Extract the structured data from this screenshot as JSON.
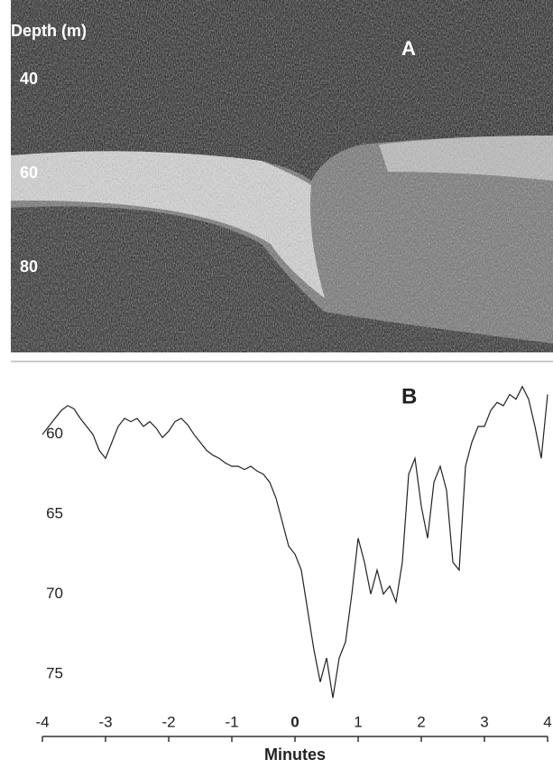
{
  "chart_data": [
    {
      "type": "echogram",
      "title": "A",
      "y_label": "Depth (m)",
      "ylim": [
        23,
        98
      ],
      "yticks": [
        40,
        60,
        80
      ]
    },
    {
      "type": "line",
      "title": "B",
      "x_label": "Minutes",
      "x": [
        -4,
        -3.9,
        -3.8,
        -3.7,
        -3.6,
        -3.5,
        -3.4,
        -3.3,
        -3.2,
        -3.1,
        -3,
        -2.9,
        -2.8,
        -2.7,
        -2.6,
        -2.5,
        -2.4,
        -2.3,
        -2.2,
        -2.1,
        -2,
        -1.9,
        -1.8,
        -1.7,
        -1.6,
        -1.5,
        -1.4,
        -1.3,
        -1.2,
        -1.1,
        -1,
        -0.9,
        -0.8,
        -0.7,
        -0.6,
        -0.5,
        -0.4,
        -0.3,
        -0.2,
        -0.1,
        0,
        0.1,
        0.2,
        0.3,
        0.4,
        0.5,
        0.6,
        0.7,
        0.8,
        0.9,
        1,
        1.1,
        1.2,
        1.3,
        1.4,
        1.5,
        1.6,
        1.7,
        1.8,
        1.9,
        2,
        2.1,
        2.2,
        2.3,
        2.4,
        2.5,
        2.6,
        2.7,
        2.8,
        2.9,
        3,
        3.1,
        3.2,
        3.3,
        3.4,
        3.5,
        3.6,
        3.7,
        3.8,
        3.9,
        4
      ],
      "values": [
        60,
        59.5,
        59,
        58.5,
        58.2,
        58.4,
        59,
        59.5,
        60,
        61,
        61.5,
        60.5,
        59.5,
        59,
        59.2,
        59,
        59.5,
        59.2,
        59.6,
        60.2,
        59.8,
        59.2,
        59,
        59.4,
        60,
        60.5,
        61,
        61.3,
        61.5,
        61.8,
        62,
        62,
        62.2,
        62,
        62.3,
        62.5,
        63,
        64,
        65.5,
        67,
        67.5,
        68.5,
        71,
        73.5,
        75.5,
        74,
        76.5,
        74,
        73,
        70,
        66.5,
        68,
        70,
        68.5,
        70,
        69.5,
        70.5,
        68,
        62.5,
        61.5,
        64.5,
        66.5,
        63,
        62,
        63.5,
        68,
        68.5,
        62,
        60.5,
        59.5,
        59.5,
        58.5,
        58,
        58.2,
        57.5,
        57.8,
        57,
        57.8,
        59.5,
        61.5,
        57.5
      ],
      "color": "#222222",
      "invert_y": true,
      "xlim": [
        -4,
        4
      ],
      "xticks": [
        -4,
        -3,
        -2,
        -1,
        0,
        1,
        2,
        3,
        4
      ],
      "ylim": [
        56,
        77.5
      ],
      "yticks": [
        60,
        65,
        70,
        75
      ]
    }
  ]
}
